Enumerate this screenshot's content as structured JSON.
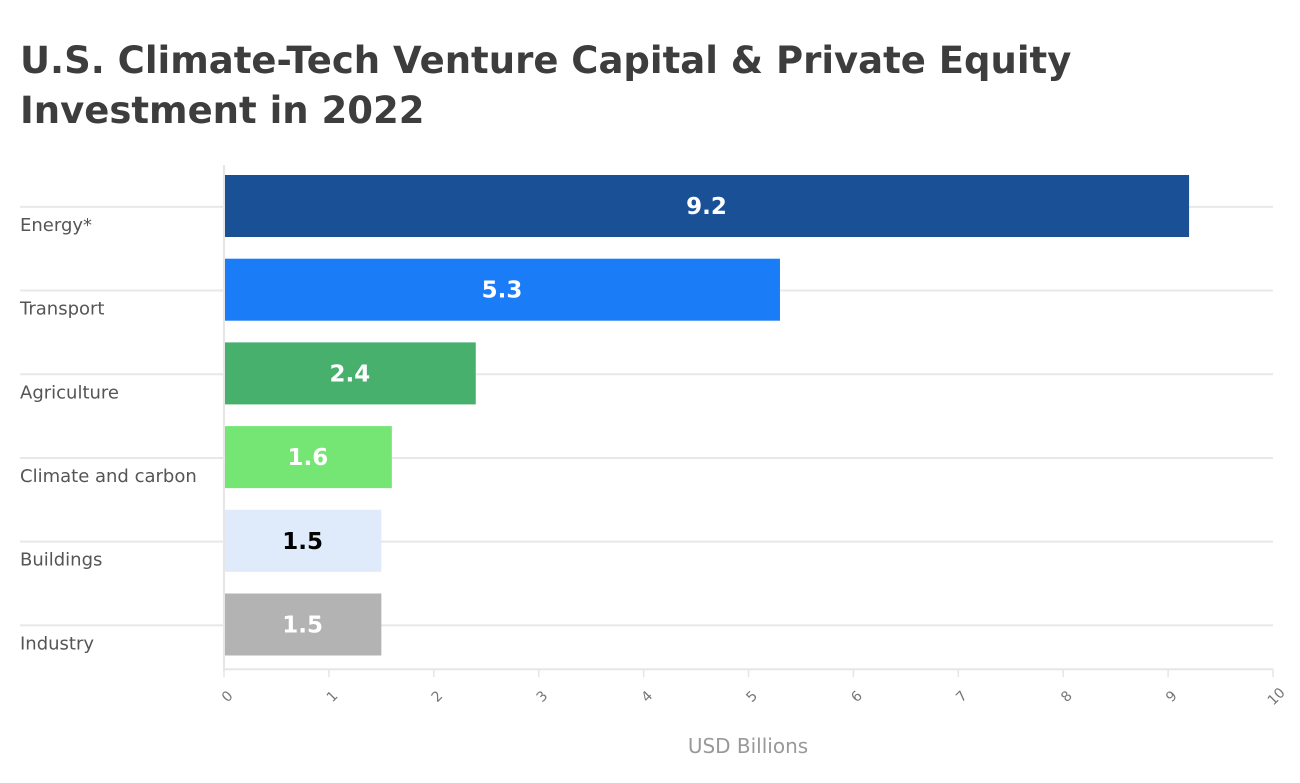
{
  "chart_data": {
    "type": "bar",
    "orientation": "horizontal",
    "title": "U.S. Climate-Tech Venture Capital & Private Equity Investment in 2022",
    "title_lines": [
      "U.S. Climate-Tech Venture Capital & Private Equity",
      "Investment in 2022"
    ],
    "categories": [
      "Energy*",
      "Transport",
      "Agriculture",
      "Climate and carbon",
      "Buildings",
      "Industry"
    ],
    "values": [
      9.2,
      5.3,
      2.4,
      1.6,
      1.5,
      1.5
    ],
    "value_labels": [
      "9.2",
      "5.3",
      "2.4",
      "1.6",
      "1.5",
      "1.5"
    ],
    "colors": [
      "#1a5196",
      "#1b7cf7",
      "#47b06d",
      "#75e674",
      "#dfeafb",
      "#b3b3b3"
    ],
    "label_colors": [
      "#ffffff",
      "#ffffff",
      "#ffffff",
      "#ffffff",
      "#000000",
      "#ffffff"
    ],
    "xlabel": "USD Billions",
    "ylabel": "",
    "xlim": [
      0,
      10
    ],
    "xticks": [
      0,
      1,
      2,
      3,
      4,
      5,
      6,
      7,
      8,
      9,
      10
    ],
    "xtick_labels": [
      "0",
      "1",
      "2",
      "3",
      "4",
      "5",
      "6",
      "7",
      "8",
      "9",
      "10"
    ],
    "grid": true,
    "legend": "none"
  }
}
